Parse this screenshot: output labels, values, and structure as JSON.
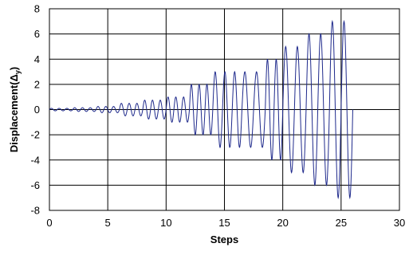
{
  "chart_data": {
    "type": "line",
    "title": "",
    "xlabel": "Steps",
    "ylabel": "Displacement(Δ",
    "ylabel_sub": "y",
    "ylabel_close": ")",
    "xlim": [
      0,
      30
    ],
    "ylim": [
      -8,
      8
    ],
    "x_ticks": [
      0,
      5,
      10,
      15,
      20,
      25,
      30
    ],
    "y_ticks": [
      -8,
      -6,
      -4,
      -2,
      0,
      2,
      4,
      6,
      8
    ],
    "grid": true,
    "line_color": "#1f2a8c",
    "series": [
      {
        "description": "cyclic displacement history, groups of 3 cycles with increasing amplitude",
        "cycle_groups": [
          {
            "x_start": 0.0,
            "x_end": 2.0,
            "amplitude": 0.1,
            "cycles": 3
          },
          {
            "x_start": 2.0,
            "x_end": 4.0,
            "amplitude": 0.15,
            "cycles": 3
          },
          {
            "x_start": 4.0,
            "x_end": 6.0,
            "amplitude": 0.25,
            "cycles": 3
          },
          {
            "x_start": 6.0,
            "x_end": 8.0,
            "amplitude": 0.5,
            "cycles": 3
          },
          {
            "x_start": 8.0,
            "x_end": 10.0,
            "amplitude": 0.75,
            "cycles": 3
          },
          {
            "x_start": 10.0,
            "x_end": 12.0,
            "amplitude": 1.0,
            "cycles": 3
          },
          {
            "x_start": 12.0,
            "x_end": 14.0,
            "amplitude": 2.0,
            "cycles": 3
          },
          {
            "x_start": 14.0,
            "x_end": 16.5,
            "amplitude": 3.0,
            "cycles": 3
          },
          {
            "x_start": 16.5,
            "x_end": 18.5,
            "amplitude": 3.0,
            "cycles": 2
          },
          {
            "x_start": 18.5,
            "x_end": 20.0,
            "amplitude": 4.0,
            "cycles": 2
          },
          {
            "x_start": 20.0,
            "x_end": 22.0,
            "amplitude": 5.0,
            "cycles": 2
          },
          {
            "x_start": 22.0,
            "x_end": 24.0,
            "amplitude": 6.0,
            "cycles": 2
          },
          {
            "x_start": 24.0,
            "x_end": 26.0,
            "amplitude": 7.0,
            "cycles": 2
          }
        ]
      }
    ]
  }
}
